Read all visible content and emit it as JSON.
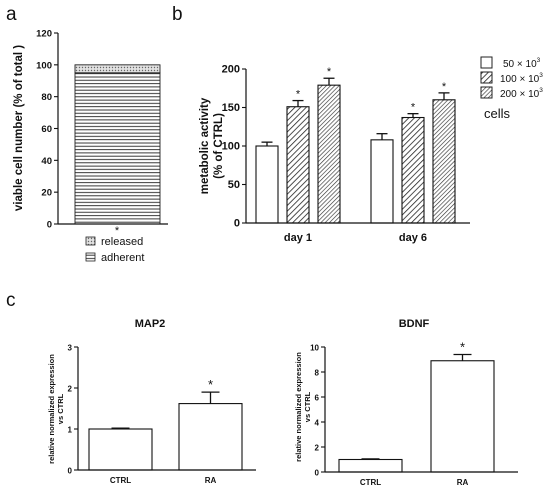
{
  "panels": {
    "a": {
      "label": "a"
    },
    "b": {
      "label": "b"
    },
    "c": {
      "label": "c"
    }
  },
  "chart_data": [
    {
      "id": "a",
      "type": "bar",
      "stacked": true,
      "ylabel": "viable cell number (% of total )",
      "ylim": [
        0,
        120
      ],
      "yticks": [
        0,
        20,
        40,
        60,
        80,
        100,
        120
      ],
      "x_tick_mark": "*",
      "segments": [
        {
          "name": "adherent",
          "value": 95
        },
        {
          "name": "released",
          "value": 5
        }
      ],
      "legend": [
        "released",
        "adherent"
      ]
    },
    {
      "id": "b",
      "type": "bar",
      "ylabel_line1": "metabolic activity",
      "ylabel_line2": "(% of CTRL)",
      "ylim": [
        0,
        200
      ],
      "yticks": [
        0,
        50,
        100,
        150,
        200
      ],
      "categories": [
        "day 1",
        "day 6"
      ],
      "series": [
        {
          "name": "50 × 10",
          "exp": "3",
          "values": [
            100,
            108
          ],
          "errors": [
            5,
            8
          ],
          "sig": [
            "",
            ""
          ]
        },
        {
          "name": "100 × 10",
          "exp": "3",
          "values": [
            151,
            137
          ],
          "errors": [
            8,
            5
          ],
          "sig": [
            "*",
            "*"
          ]
        },
        {
          "name": "200 × 10",
          "exp": "3",
          "values": [
            179,
            160
          ],
          "errors": [
            9,
            9
          ],
          "sig": [
            "*",
            "*"
          ]
        }
      ],
      "legend_title": "cells"
    },
    {
      "id": "c1",
      "type": "bar",
      "title": "MAP2",
      "ylabel_line1": "relative normalized expression",
      "ylabel_line2": "vs CTRL",
      "ylim": [
        0,
        3
      ],
      "yticks": [
        0,
        1,
        2,
        3
      ],
      "categories": [
        "CTRL",
        "RA"
      ],
      "values": [
        1.0,
        1.62
      ],
      "errors": [
        0.02,
        0.28
      ],
      "sig": [
        "",
        "*"
      ]
    },
    {
      "id": "c2",
      "type": "bar",
      "title": "BDNF",
      "ylabel_line1": "relative normalized expression",
      "ylabel_line2": "vs CTRL",
      "ylim": [
        0,
        10
      ],
      "yticks": [
        0,
        2,
        4,
        6,
        8,
        10
      ],
      "categories": [
        "CTRL",
        "RA"
      ],
      "values": [
        1.0,
        8.9
      ],
      "errors": [
        0.05,
        0.5
      ],
      "sig": [
        "",
        "*"
      ]
    }
  ]
}
